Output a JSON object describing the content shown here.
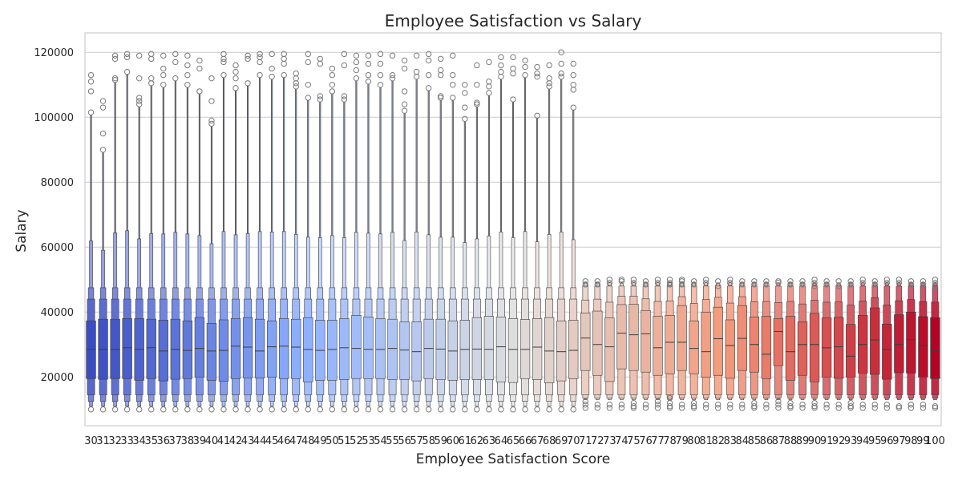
{
  "chart_data": {
    "type": "boxen",
    "title": "Employee Satisfaction vs Salary",
    "xlabel": "Employee Satisfaction Score",
    "ylabel": "Salary",
    "ylim": [
      5000,
      126000
    ],
    "yticks": [
      20000,
      40000,
      60000,
      80000,
      100000,
      120000
    ],
    "grid": "horizontal",
    "palette": "coolwarm",
    "categories": [
      "30",
      "31",
      "32",
      "33",
      "34",
      "35",
      "36",
      "37",
      "38",
      "39",
      "40",
      "41",
      "42",
      "43",
      "44",
      "45",
      "46",
      "47",
      "48",
      "49",
      "50",
      "51",
      "52",
      "53",
      "54",
      "55",
      "56",
      "57",
      "58",
      "59",
      "60",
      "61",
      "62",
      "63",
      "64",
      "65",
      "66",
      "67",
      "68",
      "69",
      "70",
      "71",
      "72",
      "73",
      "74",
      "75",
      "76",
      "77",
      "78",
      "79",
      "80",
      "81",
      "82",
      "83",
      "84",
      "85",
      "86",
      "87",
      "88",
      "89",
      "90",
      "91",
      "92",
      "93",
      "94",
      "95",
      "96",
      "97",
      "98",
      "99",
      "100"
    ],
    "medians": [
      28500,
      28500,
      28500,
      29000,
      28500,
      29000,
      28000,
      28500,
      28200,
      28800,
      28000,
      28200,
      29500,
      29200,
      28000,
      29300,
      29500,
      29200,
      28500,
      28200,
      28500,
      29000,
      28800,
      28500,
      28500,
      28800,
      28300,
      27800,
      28800,
      28600,
      28000,
      28500,
      28600,
      28500,
      29300,
      28500,
      28500,
      29200,
      28000,
      27800,
      28200,
      32000,
      30000,
      29300,
      33500,
      33000,
      33300,
      29000,
      30700,
      30700,
      28800,
      27800,
      31800,
      29700,
      31900,
      30000,
      27000,
      34000,
      27800,
      30000,
      30000,
      29000,
      29300,
      26400,
      30000,
      31400,
      28500,
      30000,
      31500,
      29700,
      28200
    ],
    "q1": [
      19500,
      19300,
      19500,
      19500,
      19000,
      19500,
      18800,
      19300,
      19500,
      20000,
      19000,
      18700,
      19500,
      19700,
      19700,
      20000,
      19500,
      19500,
      18500,
      19000,
      19000,
      19200,
      19500,
      19500,
      19500,
      19200,
      19200,
      18800,
      19500,
      19200,
      19000,
      19200,
      19200,
      19200,
      18500,
      18300,
      19500,
      19200,
      18200,
      18800,
      19500,
      22000,
      20500,
      18600,
      22500,
      22000,
      21500,
      20500,
      21000,
      22000,
      21000,
      20000,
      20500,
      19600,
      22000,
      21500,
      19500,
      23500,
      19000,
      20500,
      18500,
      20000,
      19600,
      20000,
      21200,
      20800,
      19300,
      21300,
      21200,
      20000,
      19500
    ],
    "q3": [
      37300,
      37800,
      37800,
      38000,
      38000,
      37800,
      37500,
      37800,
      37300,
      38300,
      36500,
      37600,
      38000,
      38300,
      37800,
      37300,
      38000,
      37800,
      38300,
      37500,
      37500,
      38000,
      39000,
      38500,
      38000,
      37800,
      37000,
      37000,
      37800,
      37800,
      37300,
      37500,
      38300,
      38700,
      38500,
      38000,
      37700,
      38000,
      38300,
      37300,
      37500,
      39700,
      40300,
      38200,
      42300,
      42400,
      40500,
      38700,
      39000,
      42000,
      37300,
      40000,
      41500,
      37600,
      42000,
      38500,
      38700,
      38000,
      38700,
      37000,
      39600,
      38200,
      38400,
      36200,
      39000,
      41300,
      36300,
      39200,
      40000,
      38600,
      38300
    ],
    "outliers_top": [
      [
        113000,
        111000,
        108000,
        101500
      ],
      [
        105000,
        103000,
        95000,
        90000
      ],
      [
        119000,
        118000,
        112000,
        111500
      ],
      [
        119500,
        118500,
        114000
      ],
      [
        119000,
        112000,
        106000,
        105000,
        104000
      ],
      [
        119500,
        118000,
        112000,
        110500
      ],
      [
        119000,
        115000,
        113000,
        110000
      ],
      [
        119500,
        117000,
        112000
      ],
      [
        119000,
        116000,
        113000,
        110000
      ],
      [
        117500,
        115000,
        108000
      ],
      [
        112000,
        105000,
        99000,
        98000
      ],
      [
        119500,
        118000,
        117000,
        113000
      ],
      [
        116000,
        114000,
        112000,
        109000
      ],
      [
        119000,
        118000,
        110500
      ],
      [
        119500,
        118500,
        117000,
        113000
      ],
      [
        119500,
        115000,
        112500
      ],
      [
        119500,
        118000,
        116500,
        113000
      ],
      [
        113500,
        112000,
        110500,
        109500
      ],
      [
        119500,
        117000,
        110000,
        106000
      ],
      [
        118000,
        116500,
        106500,
        105500
      ],
      [
        115000,
        113000,
        110000,
        108000
      ],
      [
        119500,
        116000,
        106500,
        105500
      ],
      [
        119000,
        117000,
        114500,
        112000
      ],
      [
        119000,
        116500,
        113000,
        111000
      ],
      [
        119500,
        116500,
        113000,
        110000
      ],
      [
        119000,
        113000,
        112000
      ],
      [
        117500,
        115000,
        108000,
        104000,
        102000
      ],
      [
        119000,
        114000,
        112500
      ],
      [
        119500,
        117500,
        113000,
        109000
      ],
      [
        118000,
        114500,
        113000,
        106500,
        106000
      ],
      [
        119000,
        113000,
        110000,
        106000
      ],
      [
        110000,
        107500,
        103000,
        99500
      ],
      [
        116000,
        110000,
        104500,
        104000
      ],
      [
        117000,
        111000,
        109500,
        107500
      ],
      [
        118500,
        116000,
        114000,
        112500
      ],
      [
        118500,
        115000,
        113500,
        105500
      ],
      [
        117500,
        115500,
        113000
      ],
      [
        115500,
        113500,
        112500,
        100500
      ],
      [
        116000,
        112000,
        110500,
        109500
      ],
      [
        120000,
        116500,
        113500,
        112500
      ],
      [
        116500,
        113000,
        110000,
        108500,
        103000
      ],
      [
        49500,
        48500
      ],
      [
        49500,
        48500
      ],
      [
        50000,
        49000
      ],
      [
        50000,
        49500
      ],
      [
        50000,
        49000
      ],
      [
        49500,
        48500
      ],
      [
        50000,
        49000
      ],
      [
        50000,
        49000,
        48500
      ],
      [
        50000,
        49500,
        48500
      ],
      [
        49500,
        48500
      ],
      [
        50000,
        49000
      ],
      [
        49500,
        48000
      ],
      [
        50000,
        49000
      ],
      [
        49500,
        48500
      ],
      [
        49500,
        48500
      ],
      [
        49500,
        48500
      ],
      [
        49500,
        49000
      ],
      [
        49500,
        48500
      ],
      [
        49500,
        48500
      ],
      [
        50000,
        49000,
        48000
      ],
      [
        49500,
        48500
      ],
      [
        49500,
        48000
      ],
      [
        49500,
        48500
      ],
      [
        50000,
        49000
      ],
      [
        49500,
        48500
      ],
      [
        50000,
        49000
      ],
      [
        50000,
        49000
      ],
      [
        49500,
        48500
      ],
      [
        49500,
        48500
      ],
      [
        50000,
        49000,
        48000
      ]
    ],
    "outliers_bottom": [
      [
        10000
      ],
      [
        10000
      ],
      [
        10000
      ],
      [
        10000
      ],
      [
        10000
      ],
      [
        10000
      ],
      [
        10000
      ],
      [
        10000
      ],
      [
        10000
      ],
      [
        10000
      ],
      [
        10000
      ],
      [
        10000
      ],
      [
        10000
      ],
      [
        10000
      ],
      [
        10000
      ],
      [
        10000
      ],
      [
        10000
      ],
      [
        10000
      ],
      [
        10000
      ],
      [
        10000
      ],
      [
        10000
      ],
      [
        10000
      ],
      [
        10000
      ],
      [
        10000
      ],
      [
        10000
      ],
      [
        10000
      ],
      [
        10000
      ],
      [
        10000
      ],
      [
        10000
      ],
      [
        10000
      ],
      [
        10000
      ],
      [
        10000
      ],
      [
        10000
      ],
      [
        10000
      ],
      [
        10000
      ],
      [
        10000
      ],
      [
        10000
      ],
      [
        10000
      ],
      [
        10000
      ],
      [
        10000
      ],
      [
        10000
      ],
      [
        10500,
        11500,
        12500
      ],
      [
        10500,
        11500
      ],
      [
        10500,
        11500
      ],
      [
        10500,
        11500
      ],
      [
        10500,
        11000,
        12000
      ],
      [
        10500,
        11500
      ],
      [
        10500,
        11500,
        12500
      ],
      [
        10500,
        11000,
        12000,
        13500
      ],
      [
        10500,
        11500
      ],
      [
        10500,
        11000,
        12000
      ],
      [
        10500,
        11500
      ],
      [
        10500,
        11500
      ],
      [
        10500,
        11500
      ],
      [
        10500,
        11500
      ],
      [
        10500,
        11000,
        12000
      ],
      [
        10500,
        11500
      ],
      [
        10500,
        11500,
        12500
      ],
      [
        10500,
        11000,
        12000
      ],
      [
        10500,
        11500
      ],
      [
        10500,
        11000,
        12000
      ],
      [
        10500,
        11500
      ],
      [
        10500,
        11500
      ],
      [
        10500,
        11000,
        12000
      ],
      [
        10500,
        11500
      ],
      [
        10500,
        11500
      ],
      [
        10500,
        11500
      ],
      [
        10500,
        11000
      ],
      [
        10500,
        11500
      ],
      [
        10500,
        11500
      ],
      [
        10500,
        11000
      ]
    ]
  }
}
